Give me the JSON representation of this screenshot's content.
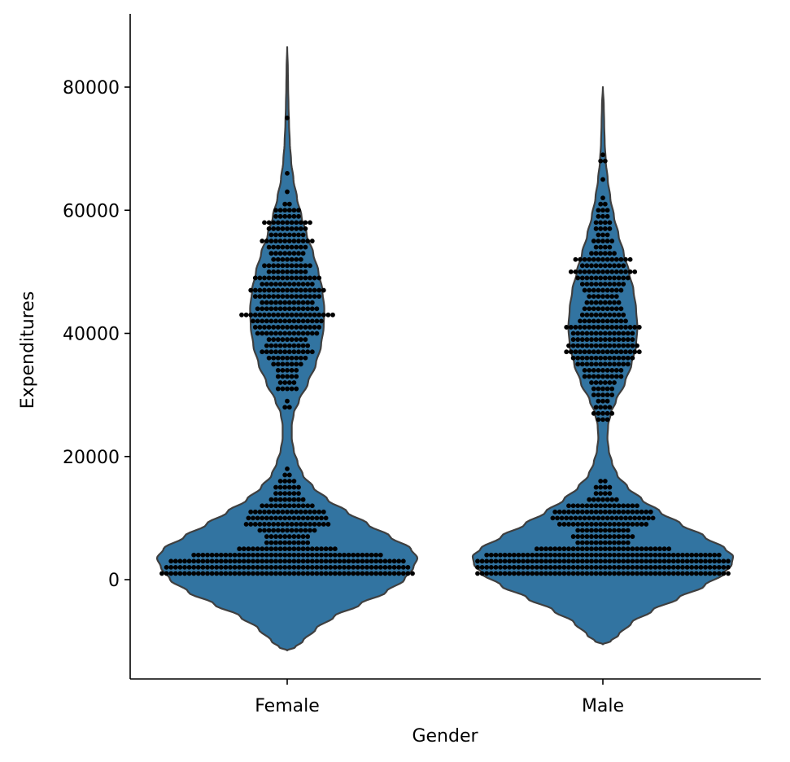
{
  "chart_data": {
    "type": "violin",
    "xlabel": "Gender",
    "ylabel": "Expenditures",
    "categories": [
      "Female",
      "Male"
    ],
    "ylim": [
      -16000,
      92000
    ],
    "yticks": [
      0,
      20000,
      40000,
      60000,
      80000
    ],
    "ytick_labels": [
      "0",
      "20000",
      "40000",
      "60000",
      "80000"
    ],
    "colors": {
      "violin_fill": "#3274a1",
      "violin_edge": "#3f3f3f",
      "points": "#000000",
      "axes": "#000000"
    },
    "series": [
      {
        "category": "Female",
        "y_extent": [
          -11500,
          86500
        ],
        "density_profile": [
          [
            -11500,
            0.0
          ],
          [
            -11000,
            0.06
          ],
          [
            -10000,
            0.12
          ],
          [
            -8000,
            0.22
          ],
          [
            -6000,
            0.36
          ],
          [
            -4000,
            0.56
          ],
          [
            -2000,
            0.76
          ],
          [
            0,
            0.9
          ],
          [
            2000,
            0.97
          ],
          [
            3500,
            1.0
          ],
          [
            5000,
            0.95
          ],
          [
            7000,
            0.79
          ],
          [
            9000,
            0.62
          ],
          [
            11000,
            0.46
          ],
          [
            13000,
            0.31
          ],
          [
            15000,
            0.2
          ],
          [
            17000,
            0.12
          ],
          [
            19000,
            0.08
          ],
          [
            21000,
            0.05
          ],
          [
            23000,
            0.035
          ],
          [
            25000,
            0.035
          ],
          [
            27000,
            0.05
          ],
          [
            29000,
            0.09
          ],
          [
            32000,
            0.16
          ],
          [
            35000,
            0.22
          ],
          [
            38000,
            0.26
          ],
          [
            41000,
            0.28
          ],
          [
            44000,
            0.285
          ],
          [
            47000,
            0.27
          ],
          [
            50000,
            0.24
          ],
          [
            53000,
            0.2
          ],
          [
            56000,
            0.15
          ],
          [
            59000,
            0.11
          ],
          [
            62000,
            0.075
          ],
          [
            65000,
            0.048
          ],
          [
            68000,
            0.03
          ],
          [
            71000,
            0.02
          ],
          [
            74000,
            0.014
          ],
          [
            77000,
            0.01
          ],
          [
            80000,
            0.007
          ],
          [
            83000,
            0.005
          ],
          [
            86500,
            0.0
          ]
        ],
        "points": [
          {
            "y": 1000,
            "n": 56
          },
          {
            "y": 2000,
            "n": 54
          },
          {
            "y": 3000,
            "n": 52
          },
          {
            "y": 4000,
            "n": 42
          },
          {
            "y": 5000,
            "n": 22
          },
          {
            "y": 6000,
            "n": 10
          },
          {
            "y": 7000,
            "n": 10
          },
          {
            "y": 8000,
            "n": 13
          },
          {
            "y": 9000,
            "n": 19
          },
          {
            "y": 10000,
            "n": 18
          },
          {
            "y": 11000,
            "n": 17
          },
          {
            "y": 12000,
            "n": 12
          },
          {
            "y": 13000,
            "n": 8
          },
          {
            "y": 14000,
            "n": 6
          },
          {
            "y": 15000,
            "n": 6
          },
          {
            "y": 16000,
            "n": 4
          },
          {
            "y": 17000,
            "n": 2
          },
          {
            "y": 18000,
            "n": 1
          },
          {
            "y": 28000,
            "n": 2
          },
          {
            "y": 29000,
            "n": 1
          },
          {
            "y": 31000,
            "n": 5
          },
          {
            "y": 32000,
            "n": 4
          },
          {
            "y": 33000,
            "n": 5
          },
          {
            "y": 34000,
            "n": 5
          },
          {
            "y": 35000,
            "n": 7
          },
          {
            "y": 36000,
            "n": 9
          },
          {
            "y": 37000,
            "n": 12
          },
          {
            "y": 38000,
            "n": 10
          },
          {
            "y": 39000,
            "n": 9
          },
          {
            "y": 40000,
            "n": 14
          },
          {
            "y": 41000,
            "n": 15
          },
          {
            "y": 42000,
            "n": 16
          },
          {
            "y": 43000,
            "n": 21
          },
          {
            "y": 44000,
            "n": 14
          },
          {
            "y": 45000,
            "n": 12
          },
          {
            "y": 46000,
            "n": 15
          },
          {
            "y": 47000,
            "n": 17
          },
          {
            "y": 48000,
            "n": 12
          },
          {
            "y": 49000,
            "n": 15
          },
          {
            "y": 50000,
            "n": 9
          },
          {
            "y": 51000,
            "n": 11
          },
          {
            "y": 52000,
            "n": 7
          },
          {
            "y": 53000,
            "n": 8
          },
          {
            "y": 54000,
            "n": 9
          },
          {
            "y": 55000,
            "n": 12
          },
          {
            "y": 56000,
            "n": 8
          },
          {
            "y": 57000,
            "n": 9
          },
          {
            "y": 58000,
            "n": 11
          },
          {
            "y": 59000,
            "n": 6
          },
          {
            "y": 60000,
            "n": 6
          },
          {
            "y": 61000,
            "n": 2
          },
          {
            "y": 63000,
            "n": 1
          },
          {
            "y": 66000,
            "n": 1
          },
          {
            "y": 75000,
            "n": 1
          }
        ]
      },
      {
        "category": "Male",
        "y_extent": [
          -10500,
          80000
        ],
        "density_profile": [
          [
            -10500,
            0.0
          ],
          [
            -10000,
            0.06
          ],
          [
            -9000,
            0.12
          ],
          [
            -7000,
            0.22
          ],
          [
            -5000,
            0.38
          ],
          [
            -3000,
            0.58
          ],
          [
            -1000,
            0.78
          ],
          [
            1000,
            0.93
          ],
          [
            2500,
            0.99
          ],
          [
            3800,
            1.0
          ],
          [
            5000,
            0.94
          ],
          [
            7000,
            0.78
          ],
          [
            9000,
            0.6
          ],
          [
            11000,
            0.44
          ],
          [
            13000,
            0.3
          ],
          [
            15000,
            0.19
          ],
          [
            17000,
            0.11
          ],
          [
            19000,
            0.07
          ],
          [
            21000,
            0.045
          ],
          [
            23000,
            0.035
          ],
          [
            25000,
            0.04
          ],
          [
            27000,
            0.06
          ],
          [
            29000,
            0.1
          ],
          [
            32000,
            0.17
          ],
          [
            35000,
            0.22
          ],
          [
            38000,
            0.255
          ],
          [
            41000,
            0.265
          ],
          [
            44000,
            0.255
          ],
          [
            47000,
            0.235
          ],
          [
            50000,
            0.2
          ],
          [
            53000,
            0.16
          ],
          [
            56000,
            0.12
          ],
          [
            59000,
            0.085
          ],
          [
            62000,
            0.057
          ],
          [
            65000,
            0.037
          ],
          [
            68000,
            0.022
          ],
          [
            71000,
            0.014
          ],
          [
            74000,
            0.01
          ],
          [
            77000,
            0.007
          ],
          [
            80000,
            0.0
          ]
        ],
        "points": [
          {
            "y": 1000,
            "n": 56
          },
          {
            "y": 2000,
            "n": 56
          },
          {
            "y": 3000,
            "n": 56
          },
          {
            "y": 4000,
            "n": 52
          },
          {
            "y": 5000,
            "n": 30
          },
          {
            "y": 6000,
            "n": 12
          },
          {
            "y": 7000,
            "n": 14
          },
          {
            "y": 8000,
            "n": 12
          },
          {
            "y": 9000,
            "n": 20
          },
          {
            "y": 10000,
            "n": 23
          },
          {
            "y": 11000,
            "n": 22
          },
          {
            "y": 12000,
            "n": 16
          },
          {
            "y": 13000,
            "n": 7
          },
          {
            "y": 14000,
            "n": 4
          },
          {
            "y": 15000,
            "n": 4
          },
          {
            "y": 16000,
            "n": 2
          },
          {
            "y": 26000,
            "n": 3
          },
          {
            "y": 27000,
            "n": 5
          },
          {
            "y": 28000,
            "n": 4
          },
          {
            "y": 29000,
            "n": 3
          },
          {
            "y": 30000,
            "n": 5
          },
          {
            "y": 31000,
            "n": 5
          },
          {
            "y": 32000,
            "n": 6
          },
          {
            "y": 33000,
            "n": 9
          },
          {
            "y": 34000,
            "n": 9
          },
          {
            "y": 35000,
            "n": 12
          },
          {
            "y": 36000,
            "n": 14
          },
          {
            "y": 37000,
            "n": 17
          },
          {
            "y": 38000,
            "n": 16
          },
          {
            "y": 39000,
            "n": 14
          },
          {
            "y": 40000,
            "n": 14
          },
          {
            "y": 41000,
            "n": 17
          },
          {
            "y": 42000,
            "n": 11
          },
          {
            "y": 43000,
            "n": 10
          },
          {
            "y": 44000,
            "n": 9
          },
          {
            "y": 45000,
            "n": 8
          },
          {
            "y": 46000,
            "n": 7
          },
          {
            "y": 47000,
            "n": 9
          },
          {
            "y": 48000,
            "n": 10
          },
          {
            "y": 49000,
            "n": 12
          },
          {
            "y": 50000,
            "n": 15
          },
          {
            "y": 51000,
            "n": 10
          },
          {
            "y": 52000,
            "n": 13
          },
          {
            "y": 53000,
            "n": 6
          },
          {
            "y": 54000,
            "n": 4
          },
          {
            "y": 55000,
            "n": 5
          },
          {
            "y": 56000,
            "n": 3
          },
          {
            "y": 57000,
            "n": 4
          },
          {
            "y": 58000,
            "n": 4
          },
          {
            "y": 59000,
            "n": 3
          },
          {
            "y": 60000,
            "n": 3
          },
          {
            "y": 61000,
            "n": 2
          },
          {
            "y": 62000,
            "n": 1
          },
          {
            "y": 65000,
            "n": 1
          },
          {
            "y": 68000,
            "n": 2
          },
          {
            "y": 69000,
            "n": 1
          }
        ]
      }
    ]
  }
}
